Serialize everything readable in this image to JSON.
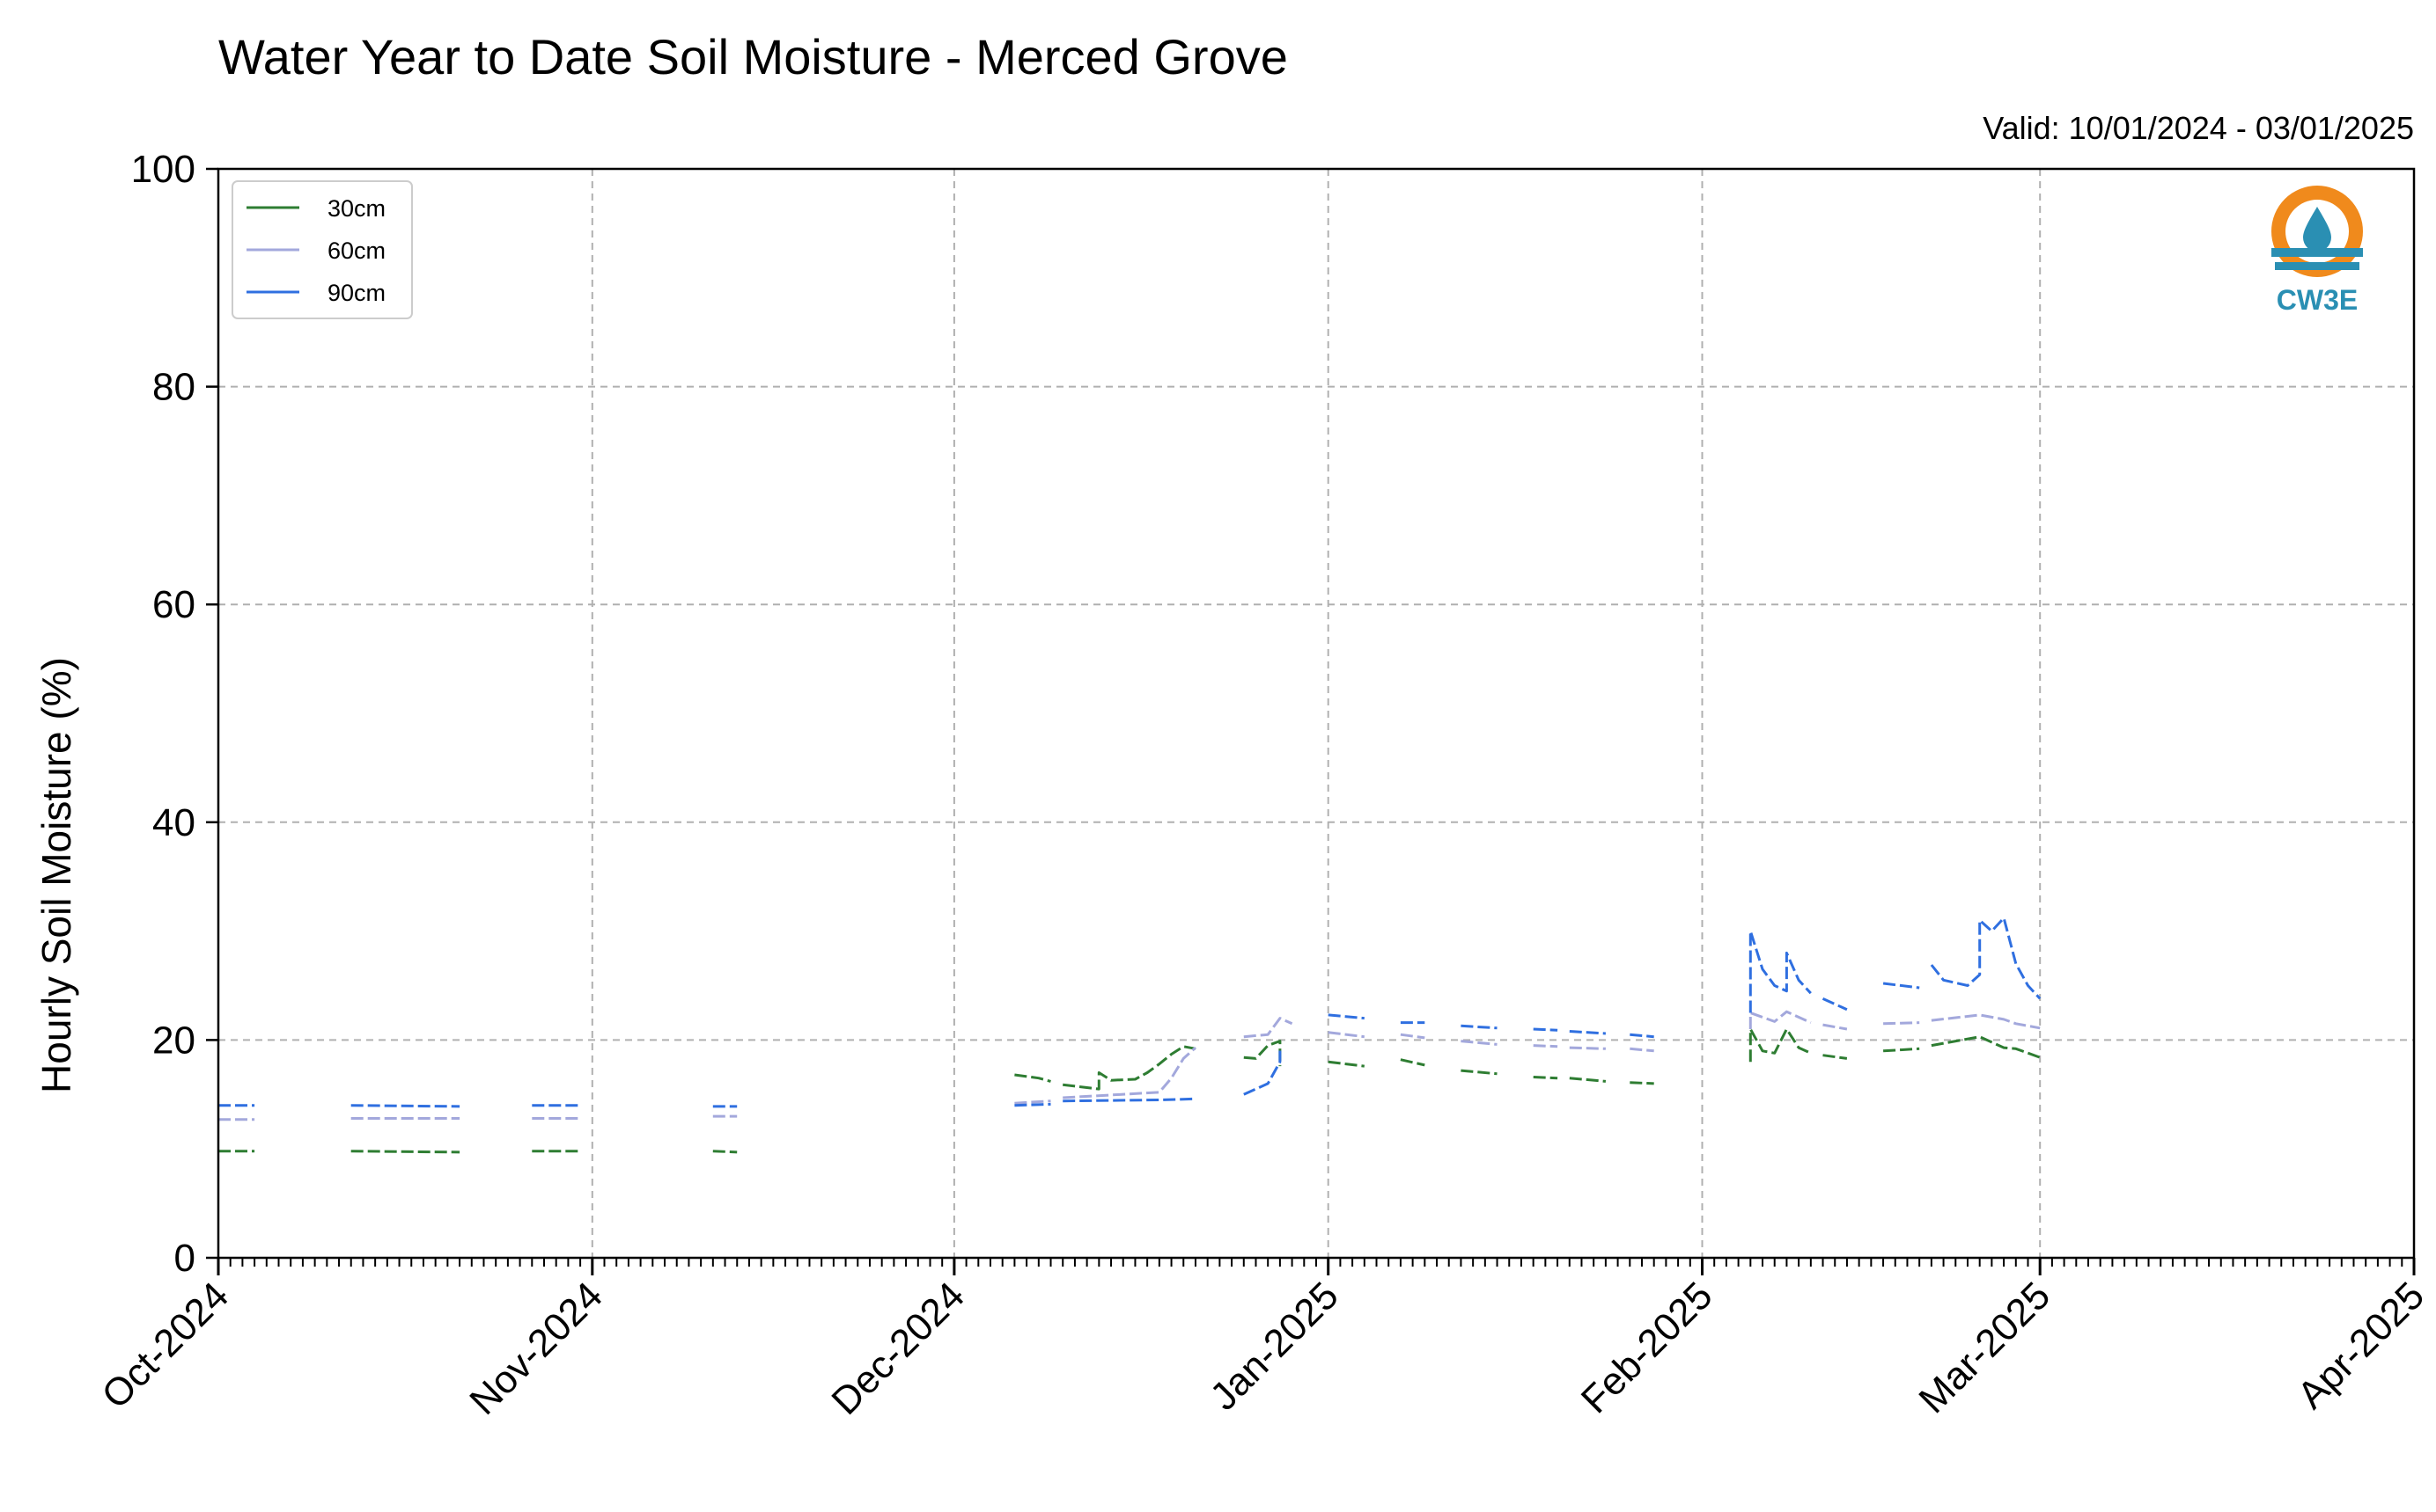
{
  "chart_data": {
    "type": "line",
    "title": "Water Year to Date Soil Moisture - Merced Grove",
    "subtitle": "Valid: 10/01/2024 - 03/01/2025",
    "xlabel": "",
    "ylabel": "Hourly Soil Moisture (%)",
    "ylim": [
      0,
      100
    ],
    "yticks": [
      "0",
      "20",
      "40",
      "60",
      "80",
      "100"
    ],
    "xlim": [
      "2024-10-01",
      "2025-04-01"
    ],
    "xticks": [
      {
        "date": "2024-10-01",
        "label": "Oct-2024"
      },
      {
        "date": "2024-11-01",
        "label": "Nov-2024"
      },
      {
        "date": "2024-12-01",
        "label": "Dec-2024"
      },
      {
        "date": "2025-01-01",
        "label": "Jan-2025"
      },
      {
        "date": "2025-02-01",
        "label": "Feb-2025"
      },
      {
        "date": "2025-03-01",
        "label": "Mar-2025"
      },
      {
        "date": "2025-04-01",
        "label": "Apr-2025"
      }
    ],
    "grid": true,
    "legend": "top-left",
    "logo_text": "CW3E",
    "series": [
      {
        "name": "30cm",
        "color": "#2e7d32",
        "segments": [
          [
            [
              "2024-10-01",
              9.8
            ],
            [
              "2024-10-04",
              9.8
            ]
          ],
          [
            [
              "2024-10-12",
              9.8
            ],
            [
              "2024-10-21",
              9.7
            ]
          ],
          [
            [
              "2024-10-27",
              9.8
            ],
            [
              "2024-10-31",
              9.8
            ]
          ],
          [
            [
              "2024-11-11",
              9.8
            ],
            [
              "2024-11-13",
              9.7
            ]
          ],
          [
            [
              "2024-12-06",
              16.8
            ],
            [
              "2024-12-08",
              16.5
            ],
            [
              "2024-12-09",
              16.2
            ]
          ],
          [
            [
              "2024-12-10",
              15.9
            ],
            [
              "2024-12-13",
              15.5
            ],
            [
              "2024-12-13",
              17.0
            ],
            [
              "2024-12-14",
              16.3
            ],
            [
              "2024-12-16",
              16.4
            ],
            [
              "2024-12-17",
              17.0
            ],
            [
              "2024-12-18",
              17.8
            ],
            [
              "2024-12-19",
              18.7
            ],
            [
              "2024-12-20",
              19.4
            ],
            [
              "2024-12-21",
              19.2
            ]
          ],
          [
            [
              "2024-12-25",
              18.4
            ],
            [
              "2024-12-26",
              18.3
            ],
            [
              "2024-12-27",
              19.5
            ],
            [
              "2024-12-28",
              19.9
            ],
            [
              "2024-12-28",
              17.6
            ]
          ],
          [
            [
              "2025-01-01",
              18.0
            ],
            [
              "2025-01-04",
              17.6
            ]
          ],
          [
            [
              "2025-01-07",
              18.2
            ],
            [
              "2025-01-09",
              17.7
            ]
          ],
          [
            [
              "2025-01-12",
              17.2
            ],
            [
              "2025-01-15",
              16.9
            ]
          ],
          [
            [
              "2025-01-18",
              16.6
            ],
            [
              "2025-01-20",
              16.5
            ]
          ],
          [
            [
              "2025-01-21",
              16.5
            ],
            [
              "2025-01-24",
              16.2
            ]
          ],
          [
            [
              "2025-01-26",
              16.1
            ],
            [
              "2025-01-28",
              16.0
            ]
          ],
          [
            [
              "2025-02-05",
              18.0
            ],
            [
              "2025-02-05",
              21.0
            ],
            [
              "2025-02-06",
              19.0
            ],
            [
              "2025-02-07",
              18.8
            ],
            [
              "2025-02-08",
              21.0
            ],
            [
              "2025-02-09",
              19.3
            ],
            [
              "2025-02-10",
              18.8
            ]
          ],
          [
            [
              "2025-02-11",
              18.6
            ],
            [
              "2025-02-13",
              18.3
            ]
          ],
          [
            [
              "2025-02-16",
              19.0
            ],
            [
              "2025-02-19",
              19.2
            ]
          ],
          [
            [
              "2025-02-20",
              19.5
            ],
            [
              "2025-02-24",
              20.3
            ],
            [
              "2025-02-26",
              19.3
            ],
            [
              "2025-02-27",
              19.2
            ],
            [
              "2025-03-01",
              18.4
            ]
          ]
        ]
      },
      {
        "name": "60cm",
        "color": "#a3a8dc",
        "segments": [
          [
            [
              "2024-10-01",
              12.7
            ],
            [
              "2024-10-04",
              12.7
            ]
          ],
          [
            [
              "2024-10-12",
              12.8
            ],
            [
              "2024-10-21",
              12.8
            ]
          ],
          [
            [
              "2024-10-27",
              12.8
            ],
            [
              "2024-10-31",
              12.8
            ]
          ],
          [
            [
              "2024-11-11",
              13.0
            ],
            [
              "2024-11-13",
              13.0
            ]
          ],
          [
            [
              "2024-12-06",
              14.2
            ],
            [
              "2024-12-09",
              14.4
            ]
          ],
          [
            [
              "2024-12-10",
              14.7
            ],
            [
              "2024-12-18",
              15.2
            ],
            [
              "2024-12-19",
              16.5
            ],
            [
              "2024-12-20",
              18.3
            ],
            [
              "2024-12-21",
              19.3
            ]
          ],
          [
            [
              "2024-12-25",
              20.3
            ],
            [
              "2024-12-27",
              20.5
            ],
            [
              "2024-12-28",
              22.0
            ],
            [
              "2024-12-29",
              21.5
            ]
          ],
          [
            [
              "2025-01-01",
              20.7
            ],
            [
              "2025-01-04",
              20.3
            ]
          ],
          [
            [
              "2025-01-07",
              20.5
            ],
            [
              "2025-01-09",
              20.2
            ]
          ],
          [
            [
              "2025-01-12",
              19.9
            ],
            [
              "2025-01-15",
              19.6
            ]
          ],
          [
            [
              "2025-01-18",
              19.5
            ],
            [
              "2025-01-20",
              19.4
            ]
          ],
          [
            [
              "2025-01-21",
              19.3
            ],
            [
              "2025-01-24",
              19.2
            ]
          ],
          [
            [
              "2025-01-26",
              19.2
            ],
            [
              "2025-01-28",
              19.0
            ]
          ],
          [
            [
              "2025-02-05",
              21.0
            ],
            [
              "2025-02-05",
              22.5
            ],
            [
              "2025-02-07",
              21.7
            ],
            [
              "2025-02-08",
              22.6
            ],
            [
              "2025-02-10",
              21.6
            ]
          ],
          [
            [
              "2025-02-11",
              21.4
            ],
            [
              "2025-02-13",
              21.0
            ]
          ],
          [
            [
              "2025-02-16",
              21.5
            ],
            [
              "2025-02-19",
              21.6
            ]
          ],
          [
            [
              "2025-02-20",
              21.8
            ],
            [
              "2025-02-24",
              22.3
            ],
            [
              "2025-02-26",
              21.9
            ],
            [
              "2025-02-27",
              21.5
            ],
            [
              "2025-03-01",
              21.1
            ]
          ]
        ]
      },
      {
        "name": "90cm",
        "color": "#2f6fe0",
        "segments": [
          [
            [
              "2024-10-01",
              14.0
            ],
            [
              "2024-10-04",
              14.0
            ]
          ],
          [
            [
              "2024-10-12",
              14.0
            ],
            [
              "2024-10-21",
              13.9
            ]
          ],
          [
            [
              "2024-10-27",
              14.0
            ],
            [
              "2024-10-31",
              14.0
            ]
          ],
          [
            [
              "2024-11-11",
              13.9
            ],
            [
              "2024-11-13",
              13.9
            ]
          ],
          [
            [
              "2024-12-06",
              14.0
            ],
            [
              "2024-12-09",
              14.1
            ]
          ],
          [
            [
              "2024-12-10",
              14.4
            ],
            [
              "2024-12-18",
              14.5
            ],
            [
              "2024-12-21",
              14.6
            ]
          ],
          [
            [
              "2024-12-25",
              15.0
            ],
            [
              "2024-12-27",
              16.0
            ],
            [
              "2024-12-28",
              18.0
            ],
            [
              "2024-12-28",
              19.4
            ]
          ],
          [
            [
              "2025-01-01",
              22.3
            ],
            [
              "2025-01-04",
              22.0
            ]
          ],
          [
            [
              "2025-01-07",
              21.6
            ],
            [
              "2025-01-09",
              21.6
            ]
          ],
          [
            [
              "2025-01-12",
              21.3
            ],
            [
              "2025-01-15",
              21.1
            ]
          ],
          [
            [
              "2025-01-18",
              21.0
            ],
            [
              "2025-01-20",
              20.9
            ]
          ],
          [
            [
              "2025-01-21",
              20.8
            ],
            [
              "2025-01-24",
              20.6
            ]
          ],
          [
            [
              "2025-01-26",
              20.5
            ],
            [
              "2025-01-28",
              20.3
            ]
          ],
          [
            [
              "2025-02-05",
              22.5
            ],
            [
              "2025-02-05",
              30.0
            ],
            [
              "2025-02-06",
              26.5
            ],
            [
              "2025-02-07",
              25.0
            ],
            [
              "2025-02-08",
              24.5
            ],
            [
              "2025-02-08",
              28.0
            ],
            [
              "2025-02-09",
              25.5
            ],
            [
              "2025-02-10",
              24.3
            ]
          ],
          [
            [
              "2025-02-11",
              23.8
            ],
            [
              "2025-02-13",
              22.8
            ]
          ],
          [
            [
              "2025-02-16",
              25.2
            ],
            [
              "2025-02-19",
              24.8
            ]
          ],
          [
            [
              "2025-02-20",
              26.9
            ],
            [
              "2025-02-21",
              25.5
            ],
            [
              "2025-02-23",
              25.0
            ],
            [
              "2025-02-24",
              26.0
            ],
            [
              "2025-02-24",
              31.0
            ],
            [
              "2025-02-25",
              30.0
            ],
            [
              "2025-02-26",
              31.2
            ],
            [
              "2025-02-27",
              27.0
            ],
            [
              "2025-02-28",
              25.0
            ],
            [
              "2025-03-01",
              23.8
            ]
          ]
        ]
      }
    ]
  }
}
